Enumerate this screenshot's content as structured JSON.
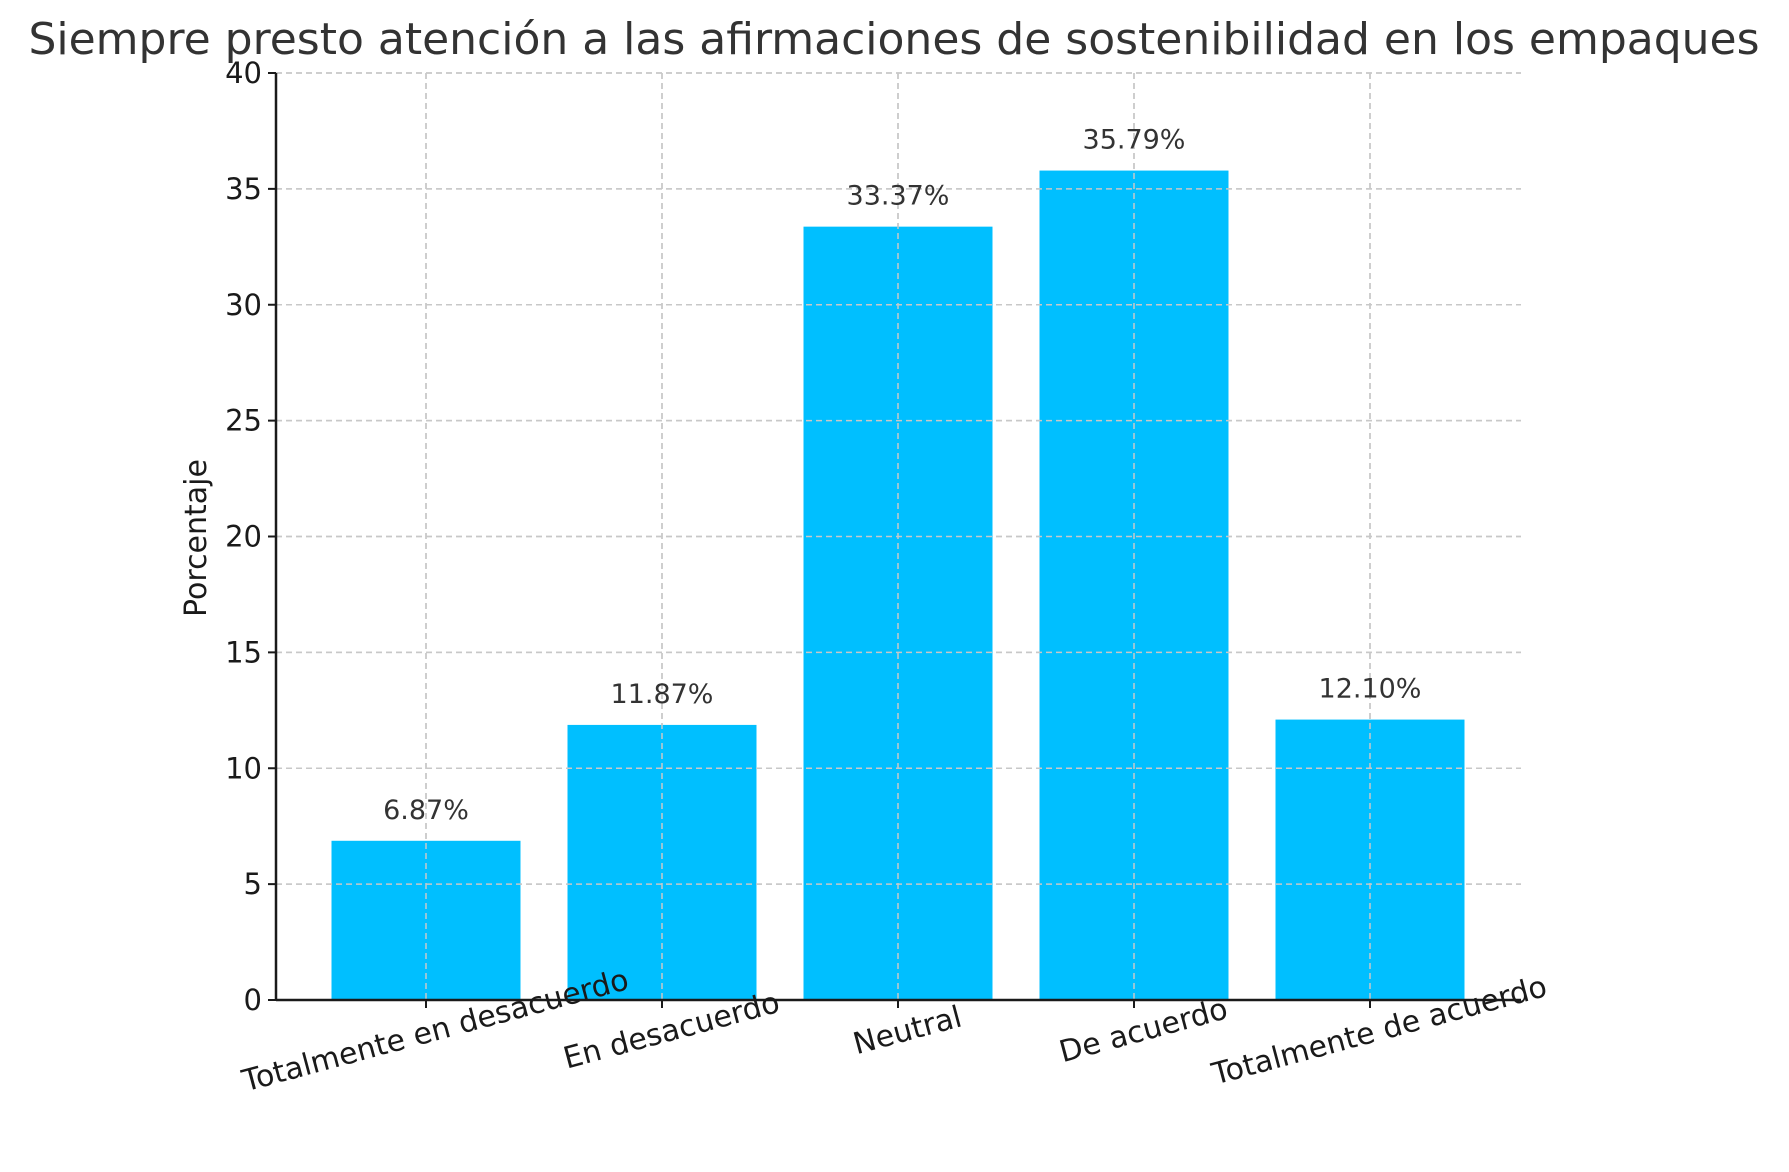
{
  "chart_data": {
    "type": "bar",
    "title": "Siempre presto atención a las afirmaciones de sostenibilidad en los empaques",
    "xlabel": "",
    "ylabel": "Porcentaje",
    "categories": [
      "Totalmente en desacuerdo",
      "En desacuerdo",
      "Neutral",
      "De acuerdo",
      "Totalmente de acuerdo"
    ],
    "values": [
      6.87,
      11.87,
      33.37,
      35.79,
      12.1
    ],
    "data_labels": [
      "6.87%",
      "11.87%",
      "33.37%",
      "35.79%",
      "12.10%"
    ],
    "ylim": [
      0,
      40
    ],
    "yticks": [
      0,
      5,
      10,
      15,
      20,
      25,
      30,
      35,
      40
    ],
    "ytick_labels": [
      "0",
      "5",
      "10",
      "15",
      "20",
      "25",
      "30",
      "35",
      "40"
    ],
    "grid": true,
    "bar_color": "#00bfff"
  }
}
